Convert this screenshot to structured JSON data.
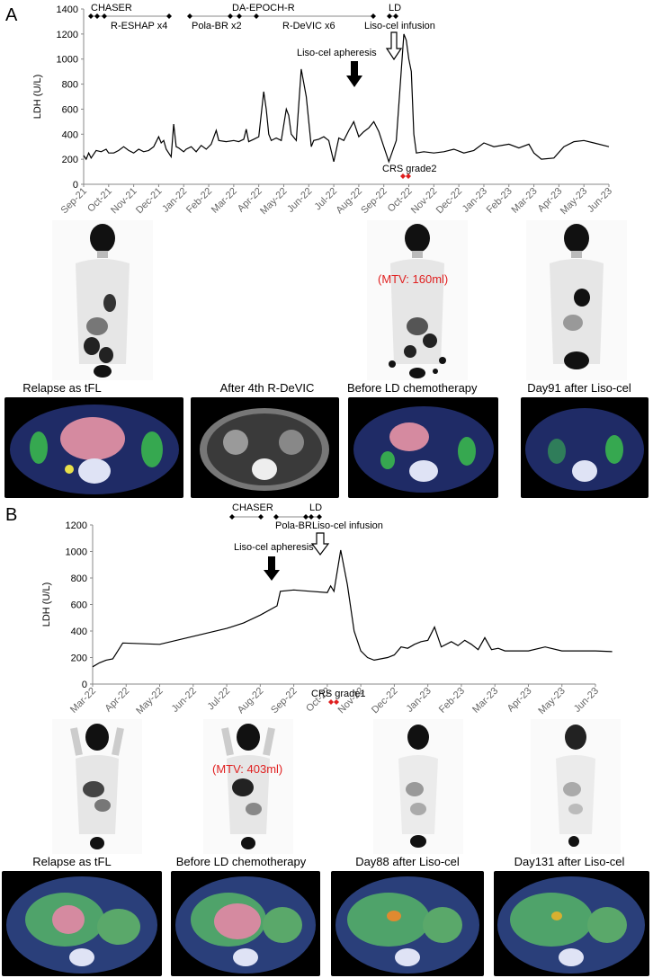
{
  "panels": [
    {
      "label": "A",
      "chart_data": {
        "type": "line",
        "title": "",
        "xlabel": "",
        "ylabel": "LDH (U/L)",
        "ylim": [
          0,
          1400
        ],
        "yticks": [
          0,
          200,
          400,
          600,
          800,
          1000,
          1200,
          1400
        ],
        "x_tick_labels": [
          "Sep-21",
          "Oct-21",
          "Nov-21",
          "Dec-21",
          "Jan-22",
          "Feb-22",
          "Mar-22",
          "Apr-22",
          "May-22",
          "Jun-22",
          "Jul-22",
          "Aug-22",
          "Sep-22",
          "Oct-22",
          "Nov-22",
          "Dec-22",
          "Jan-23",
          "Feb-23",
          "Mar-23",
          "Apr-23",
          "May-23",
          "Jun-23"
        ],
        "x_unit": "months since Sep-21",
        "series": [
          {
            "values": [
              [
                0.0,
                230
              ],
              [
                0.1,
                200
              ],
              [
                0.2,
                250
              ],
              [
                0.3,
                210
              ],
              [
                0.5,
                270
              ],
              [
                0.7,
                260
              ],
              [
                0.9,
                280
              ],
              [
                1.0,
                250
              ],
              [
                1.2,
                250
              ],
              [
                1.4,
                270
              ],
              [
                1.6,
                300
              ],
              [
                1.8,
                270
              ],
              [
                2.0,
                250
              ],
              [
                2.2,
                280
              ],
              [
                2.4,
                260
              ],
              [
                2.6,
                270
              ],
              [
                2.8,
                300
              ],
              [
                3.0,
                380
              ],
              [
                3.1,
                330
              ],
              [
                3.2,
                350
              ],
              [
                3.3,
                280
              ],
              [
                3.5,
                220
              ],
              [
                3.6,
                480
              ],
              [
                3.7,
                300
              ],
              [
                3.8,
                290
              ],
              [
                4.0,
                260
              ],
              [
                4.1,
                280
              ],
              [
                4.3,
                300
              ],
              [
                4.5,
                260
              ],
              [
                4.7,
                310
              ],
              [
                4.9,
                280
              ],
              [
                5.1,
                320
              ],
              [
                5.3,
                430
              ],
              [
                5.4,
                350
              ],
              [
                5.7,
                340
              ],
              [
                6.0,
                350
              ],
              [
                6.2,
                340
              ],
              [
                6.4,
                360
              ],
              [
                6.5,
                440
              ],
              [
                6.6,
                340
              ],
              [
                6.8,
                360
              ],
              [
                7.0,
                380
              ],
              [
                7.2,
                740
              ],
              [
                7.3,
                600
              ],
              [
                7.4,
                400
              ],
              [
                7.5,
                350
              ],
              [
                7.7,
                370
              ],
              [
                7.9,
                350
              ],
              [
                8.1,
                600
              ],
              [
                8.2,
                550
              ],
              [
                8.3,
                400
              ],
              [
                8.5,
                350
              ],
              [
                8.7,
                920
              ],
              [
                8.9,
                700
              ],
              [
                9.1,
                300
              ],
              [
                9.2,
                350
              ],
              [
                9.4,
                360
              ],
              [
                9.6,
                380
              ],
              [
                9.8,
                350
              ],
              [
                10.0,
                180
              ],
              [
                10.2,
                370
              ],
              [
                10.4,
                350
              ],
              [
                10.6,
                430
              ],
              [
                10.8,
                500
              ],
              [
                11.0,
                380
              ],
              [
                11.2,
                420
              ],
              [
                11.4,
                450
              ],
              [
                11.6,
                500
              ],
              [
                11.8,
                420
              ],
              [
                12.0,
                300
              ],
              [
                12.2,
                180
              ],
              [
                12.5,
                350
              ],
              [
                12.8,
                1200
              ],
              [
                12.9,
                1150
              ],
              [
                13.0,
                1000
              ],
              [
                13.1,
                900
              ],
              [
                13.2,
                400
              ],
              [
                13.3,
                250
              ],
              [
                13.6,
                260
              ],
              [
                14.0,
                250
              ],
              [
                14.4,
                260
              ],
              [
                14.8,
                280
              ],
              [
                15.2,
                250
              ],
              [
                15.6,
                270
              ],
              [
                16.0,
                330
              ],
              [
                16.4,
                300
              ],
              [
                17.0,
                320
              ],
              [
                17.4,
                290
              ],
              [
                17.8,
                320
              ],
              [
                18.0,
                250
              ],
              [
                18.3,
                200
              ],
              [
                18.8,
                210
              ],
              [
                19.2,
                300
              ],
              [
                19.6,
                340
              ],
              [
                20.0,
                350
              ],
              [
                20.4,
                330
              ],
              [
                21.0,
                300
              ]
            ]
          }
        ],
        "grid": false
      },
      "regimens": [
        {
          "label": "CHASER"
        },
        {
          "label": "R-ESHAP x4"
        },
        {
          "label": "Pola-BR x2"
        },
        {
          "label": "DA-EPOCH-R"
        },
        {
          "label": "R-DeVIC x6"
        },
        {
          "label": "LD"
        },
        {
          "label": "Liso-cel infusion"
        }
      ],
      "apheresis_label": "Liso-cel apheresis",
      "crs_label": "CRS grade2",
      "mtv_label": "(MTV: 160ml)",
      "scan_captions": [
        "Relapse as tFL",
        "After 4th R-DeVIC",
        "Before LD chemotherapy",
        "Day91 after Liso-cel"
      ]
    },
    {
      "label": "B",
      "chart_data": {
        "type": "line",
        "title": "",
        "xlabel": "",
        "ylabel": "LDH (U/L)",
        "ylim": [
          0,
          1200
        ],
        "yticks": [
          0,
          200,
          400,
          600,
          800,
          1000,
          1200
        ],
        "x_tick_labels": [
          "Mar-22",
          "Apr-22",
          "May-22",
          "Jun-22",
          "Jul-22",
          "Aug-22",
          "Sep-22",
          "Oct-22",
          "Nov-22",
          "Dec-22",
          "Jan-23",
          "Feb-23",
          "Mar-23",
          "Apr-23",
          "May-23",
          "Jun-23"
        ],
        "x_unit": "months since Mar-22",
        "series": [
          {
            "values": [
              [
                0.0,
                130
              ],
              [
                0.2,
                160
              ],
              [
                0.4,
                180
              ],
              [
                0.6,
                190
              ],
              [
                0.9,
                310
              ],
              [
                2.0,
                300
              ],
              [
                3.0,
                360
              ],
              [
                4.0,
                420
              ],
              [
                4.5,
                460
              ],
              [
                5.0,
                520
              ],
              [
                5.5,
                590
              ],
              [
                5.6,
                700
              ],
              [
                6.0,
                710
              ],
              [
                6.5,
                700
              ],
              [
                7.0,
                690
              ],
              [
                7.1,
                740
              ],
              [
                7.2,
                700
              ],
              [
                7.4,
                1010
              ],
              [
                7.6,
                750
              ],
              [
                7.8,
                400
              ],
              [
                8.0,
                250
              ],
              [
                8.2,
                200
              ],
              [
                8.4,
                180
              ],
              [
                8.8,
                200
              ],
              [
                9.0,
                220
              ],
              [
                9.2,
                280
              ],
              [
                9.4,
                270
              ],
              [
                9.6,
                300
              ],
              [
                9.8,
                320
              ],
              [
                10.0,
                330
              ],
              [
                10.2,
                430
              ],
              [
                10.4,
                280
              ],
              [
                10.7,
                320
              ],
              [
                10.9,
                290
              ],
              [
                11.1,
                330
              ],
              [
                11.3,
                300
              ],
              [
                11.5,
                260
              ],
              [
                11.7,
                350
              ],
              [
                11.9,
                260
              ],
              [
                12.1,
                270
              ],
              [
                12.3,
                250
              ],
              [
                13.0,
                250
              ],
              [
                13.5,
                280
              ],
              [
                14.0,
                250
              ],
              [
                15.0,
                250
              ],
              [
                15.5,
                245
              ]
            ]
          }
        ],
        "grid": false
      },
      "regimens": [
        {
          "label": "CHASER"
        },
        {
          "label": "Pola-BR"
        },
        {
          "label": "LD"
        },
        {
          "label": "Liso-cel infusion"
        }
      ],
      "apheresis_label": "Liso-cel apheresis",
      "crs_label": "CRS grade1",
      "mtv_label": "(MTV: 403ml)",
      "scan_captions": [
        "Relapse as tFL",
        "Before LD chemotherapy",
        "Day88 after Liso-cel",
        "Day131 after Liso-cel"
      ]
    }
  ],
  "colors": {
    "line": "#000000",
    "crs_marker": "#e02020",
    "mtv_text": "#e02020"
  }
}
